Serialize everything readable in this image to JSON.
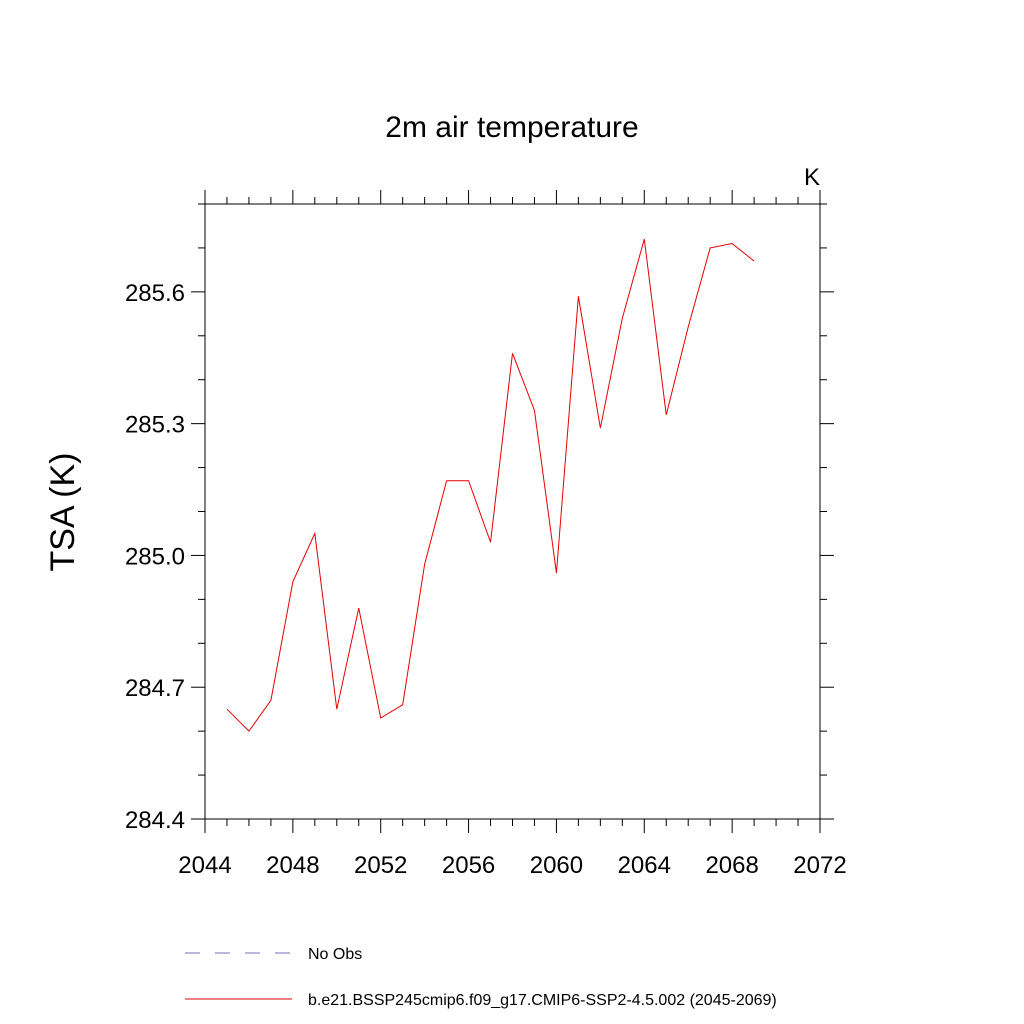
{
  "chart_data": {
    "type": "line",
    "title": "2m air temperature",
    "units_label": "K",
    "ylabel": "TSA  (K)",
    "xlabel": "",
    "xlim": [
      2044,
      2072
    ],
    "ylim": [
      284.4,
      285.8
    ],
    "x_ticks": [
      2044,
      2048,
      2052,
      2056,
      2060,
      2064,
      2068,
      2072
    ],
    "y_ticks": [
      284.4,
      284.7,
      285.0,
      285.3,
      285.6
    ],
    "y_tick_labels": [
      "284.4",
      "284.7",
      "285.0",
      "285.3",
      "285.6"
    ],
    "x_minor_step": 1,
    "y_minor_step": 0.1,
    "grid": false,
    "series": [
      {
        "name": "b.e21.BSSP245cmip6.f09_g17.CMIP6-SSP2-4.5.002 (2045-2069)",
        "color": "#e60000",
        "dash": "solid",
        "x": [
          2045,
          2046,
          2047,
          2048,
          2049,
          2050,
          2051,
          2052,
          2053,
          2054,
          2055,
          2056,
          2057,
          2058,
          2059,
          2060,
          2061,
          2062,
          2063,
          2064,
          2065,
          2066,
          2067,
          2068,
          2069
        ],
        "values": [
          284.65,
          284.6,
          284.67,
          284.94,
          285.05,
          284.65,
          284.88,
          284.63,
          284.66,
          284.98,
          285.17,
          285.17,
          285.03,
          285.46,
          285.33,
          284.96,
          285.59,
          285.29,
          285.54,
          285.72,
          285.32,
          285.52,
          285.7,
          285.71,
          285.67
        ]
      }
    ],
    "legend": {
      "placement": "bottom-left",
      "entries": [
        {
          "label": "No Obs",
          "color": "#7070b8",
          "dash": "dashed"
        },
        {
          "label": "b.e21.BSSP245cmip6.f09_g17.CMIP6-SSP2-4.5.002 (2045-2069)",
          "color": "#e60000",
          "dash": "solid"
        }
      ]
    }
  }
}
